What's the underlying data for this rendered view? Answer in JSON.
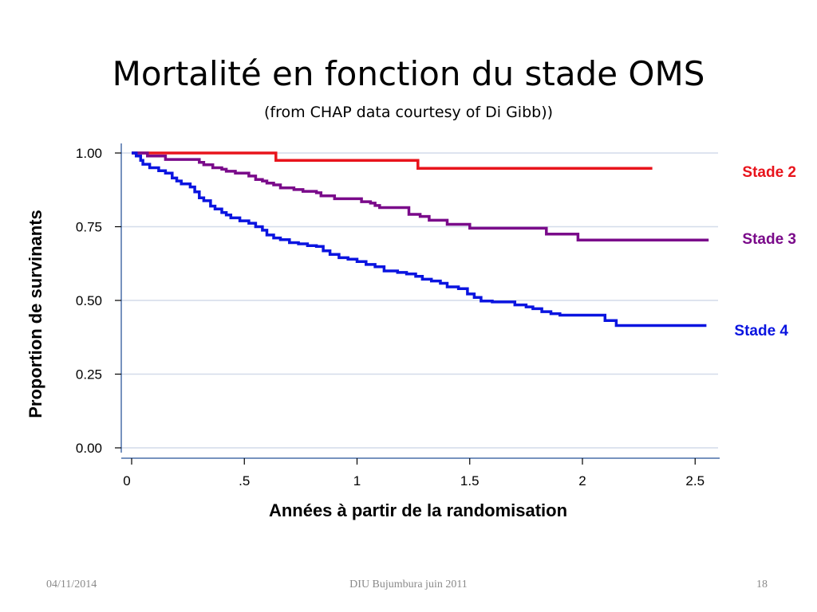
{
  "slide": {
    "title": "Mortalité en fonction du stade OMS",
    "subtitle": "(from CHAP data courtesy of Di Gibb))",
    "footer_left": "04/11/2014",
    "footer_center": "DIU Bujumbura juin 2011",
    "footer_right": "18"
  },
  "chart_data": {
    "type": "line",
    "step": true,
    "xlabel": "Années à partir de la randomisation",
    "ylabel": "Proportion de survinants",
    "xlim": [
      0,
      2.6
    ],
    "ylim": [
      0,
      1
    ],
    "x_ticks": [
      {
        "value": 0,
        "label": "0"
      },
      {
        "value": 0.5,
        "label": ".5"
      },
      {
        "value": 1,
        "label": "1"
      },
      {
        "value": 1.5,
        "label": "1.5"
      },
      {
        "value": 2,
        "label": "2"
      },
      {
        "value": 2.5,
        "label": "2.5"
      }
    ],
    "y_ticks": [
      {
        "value": 0,
        "label": "0.00"
      },
      {
        "value": 0.25,
        "label": "0.25"
      },
      {
        "value": 0.5,
        "label": "0.50"
      },
      {
        "value": 0.75,
        "label": "0.75"
      },
      {
        "value": 1,
        "label": "1.00"
      }
    ],
    "grid": "horizontal",
    "series": [
      {
        "name": "Stade 2",
        "color": "#e8141c",
        "points": [
          [
            0,
            1.0
          ],
          [
            0.64,
            1.0
          ],
          [
            0.64,
            0.975
          ],
          [
            1.27,
            0.975
          ],
          [
            1.27,
            0.948
          ],
          [
            2.31,
            0.948
          ]
        ]
      },
      {
        "name": "Stade 3",
        "color": "#7a0a8a",
        "points": [
          [
            0,
            1.0
          ],
          [
            0.05,
            1.0
          ],
          [
            0.07,
            0.99
          ],
          [
            0.14,
            0.99
          ],
          [
            0.15,
            0.978
          ],
          [
            0.26,
            0.978
          ],
          [
            0.3,
            0.968
          ],
          [
            0.32,
            0.96
          ],
          [
            0.36,
            0.95
          ],
          [
            0.4,
            0.945
          ],
          [
            0.42,
            0.938
          ],
          [
            0.46,
            0.932
          ],
          [
            0.5,
            0.932
          ],
          [
            0.52,
            0.922
          ],
          [
            0.55,
            0.91
          ],
          [
            0.58,
            0.905
          ],
          [
            0.6,
            0.898
          ],
          [
            0.63,
            0.892
          ],
          [
            0.66,
            0.882
          ],
          [
            0.72,
            0.876
          ],
          [
            0.76,
            0.87
          ],
          [
            0.82,
            0.865
          ],
          [
            0.84,
            0.855
          ],
          [
            0.9,
            0.845
          ],
          [
            1.0,
            0.845
          ],
          [
            1.02,
            0.835
          ],
          [
            1.06,
            0.83
          ],
          [
            1.08,
            0.822
          ],
          [
            1.1,
            0.815
          ],
          [
            1.22,
            0.815
          ],
          [
            1.23,
            0.792
          ],
          [
            1.28,
            0.785
          ],
          [
            1.32,
            0.772
          ],
          [
            1.38,
            0.772
          ],
          [
            1.4,
            0.758
          ],
          [
            1.48,
            0.758
          ],
          [
            1.5,
            0.745
          ],
          [
            1.84,
            0.745
          ],
          [
            1.84,
            0.725
          ],
          [
            1.98,
            0.725
          ],
          [
            1.98,
            0.705
          ],
          [
            2.56,
            0.705
          ]
        ]
      },
      {
        "name": "Stade 4",
        "color": "#0a14e0",
        "points": [
          [
            0,
            1.0
          ],
          [
            0.02,
            0.99
          ],
          [
            0.04,
            0.975
          ],
          [
            0.05,
            0.962
          ],
          [
            0.08,
            0.95
          ],
          [
            0.12,
            0.94
          ],
          [
            0.15,
            0.932
          ],
          [
            0.18,
            0.915
          ],
          [
            0.2,
            0.905
          ],
          [
            0.22,
            0.895
          ],
          [
            0.26,
            0.885
          ],
          [
            0.28,
            0.868
          ],
          [
            0.3,
            0.848
          ],
          [
            0.32,
            0.838
          ],
          [
            0.35,
            0.82
          ],
          [
            0.37,
            0.81
          ],
          [
            0.4,
            0.798
          ],
          [
            0.42,
            0.79
          ],
          [
            0.44,
            0.78
          ],
          [
            0.48,
            0.77
          ],
          [
            0.52,
            0.762
          ],
          [
            0.55,
            0.75
          ],
          [
            0.58,
            0.738
          ],
          [
            0.6,
            0.722
          ],
          [
            0.63,
            0.712
          ],
          [
            0.66,
            0.706
          ],
          [
            0.7,
            0.696
          ],
          [
            0.74,
            0.692
          ],
          [
            0.78,
            0.686
          ],
          [
            0.82,
            0.683
          ],
          [
            0.85,
            0.668
          ],
          [
            0.88,
            0.656
          ],
          [
            0.92,
            0.645
          ],
          [
            0.96,
            0.64
          ],
          [
            1.0,
            0.632
          ],
          [
            1.04,
            0.622
          ],
          [
            1.08,
            0.614
          ],
          [
            1.12,
            0.6
          ],
          [
            1.18,
            0.595
          ],
          [
            1.22,
            0.59
          ],
          [
            1.26,
            0.582
          ],
          [
            1.29,
            0.572
          ],
          [
            1.33,
            0.566
          ],
          [
            1.37,
            0.558
          ],
          [
            1.4,
            0.546
          ],
          [
            1.45,
            0.54
          ],
          [
            1.49,
            0.522
          ],
          [
            1.52,
            0.51
          ],
          [
            1.55,
            0.498
          ],
          [
            1.6,
            0.495
          ],
          [
            1.68,
            0.495
          ],
          [
            1.7,
            0.485
          ],
          [
            1.75,
            0.478
          ],
          [
            1.78,
            0.472
          ],
          [
            1.82,
            0.462
          ],
          [
            1.86,
            0.455
          ],
          [
            1.9,
            0.45
          ],
          [
            2.0,
            0.45
          ],
          [
            2.08,
            0.45
          ],
          [
            2.1,
            0.432
          ],
          [
            2.14,
            0.432
          ],
          [
            2.15,
            0.415
          ],
          [
            2.55,
            0.415
          ]
        ]
      }
    ],
    "legend_labels": [
      {
        "text": "Stade 2",
        "color": "#e8141c"
      },
      {
        "text": "Stade 3",
        "color": "#7a0a8a"
      },
      {
        "text": "Stade 4",
        "color": "#0a14e0"
      }
    ]
  }
}
